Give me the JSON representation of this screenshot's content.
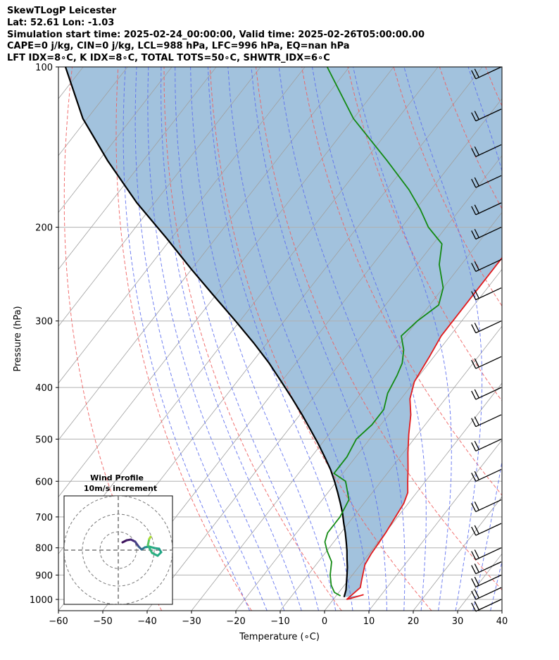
{
  "header": {
    "line1": "SkewTLogP Leicester",
    "line2": "Lat: 52.61   Lon: -1.03",
    "line3": "Simulation start time: 2025-02-24_00:00:00, Valid time: 2025-02-26T05:00:00.00",
    "line4": "CAPE=0 j/kg, CIN=0 j/kg, LCL=988 hPa, LFC=996 hPa, EQ=nan hPa",
    "line5": "LFT IDX=8∘C, K IDX=8∘C, TOTAL TOTS=50∘C, SHWTR_IDX=6∘C"
  },
  "chart_data": [
    {
      "type": "line",
      "title": "",
      "xlabel": "Temperature (∘C)",
      "ylabel": "Pressure (hPa)",
      "xlim": [
        -60,
        40
      ],
      "ylim": [
        1050,
        100
      ],
      "y_scale": "log",
      "skew": "skew-T",
      "grid": true,
      "x_ticks": [
        "−60",
        "−50",
        "−40",
        "−30",
        "−20",
        "−10",
        "0",
        "10",
        "20",
        "30",
        "40"
      ],
      "y_ticks": [
        "100",
        "200",
        "300",
        "400",
        "500",
        "600",
        "700",
        "800",
        "900",
        "1000"
      ],
      "colors": {
        "temperature": "#e31a1c",
        "dewpoint": "#138a13",
        "parcel": "#000000",
        "shade": "#7ba8cf",
        "dry_adiabat": "#f06060",
        "moist_adiabat": "#5a6cf0",
        "isotherm": "#a0a0a0"
      },
      "series": [
        {
          "key": "temperature",
          "points": [
            [
              6,
              980
            ],
            [
              3,
              1000
            ],
            [
              4,
              950
            ],
            [
              3,
              920
            ],
            [
              1,
              860
            ],
            [
              0.5,
              820
            ],
            [
              0.3,
              780
            ],
            [
              0.1,
              750
            ],
            [
              -0.5,
              700
            ],
            [
              -1,
              660
            ],
            [
              -2,
              630
            ],
            [
              -4,
              600
            ],
            [
              -6,
              570
            ],
            [
              -9,
              530
            ],
            [
              -12,
              490
            ],
            [
              -15,
              450
            ],
            [
              -18,
              420
            ],
            [
              -20,
              390
            ],
            [
              -21,
              350
            ],
            [
              -22,
              320
            ],
            [
              -22,
              290
            ],
            [
              -22,
              270
            ],
            [
              -22,
              250
            ],
            [
              -22,
              220
            ],
            [
              -22,
              200
            ],
            [
              -23,
              180
            ],
            [
              -24,
              160
            ],
            [
              -28,
              150
            ],
            [
              -30,
              140
            ],
            [
              -32,
              130
            ],
            [
              -38,
              120
            ],
            [
              -44,
              110
            ],
            [
              -50,
              100
            ]
          ]
        },
        {
          "key": "dewpoint",
          "points": [
            [
              1,
              985
            ],
            [
              -1,
              970
            ],
            [
              -3,
              940
            ],
            [
              -5,
              900
            ],
            [
              -7,
              850
            ],
            [
              -10,
              810
            ],
            [
              -12,
              780
            ],
            [
              -13,
              750
            ],
            [
              -13,
              700
            ],
            [
              -14,
              650
            ],
            [
              -18,
              600
            ],
            [
              -22,
              580
            ],
            [
              -22,
              540
            ],
            [
              -23,
              500
            ],
            [
              -22,
              470
            ],
            [
              -22,
              440
            ],
            [
              -24,
              410
            ],
            [
              -25,
              380
            ],
            [
              -26,
              360
            ],
            [
              -28,
              340
            ],
            [
              -31,
              320
            ],
            [
              -30,
              300
            ],
            [
              -28,
              280
            ],
            [
              -30,
              260
            ],
            [
              -35,
              235
            ],
            [
              -38,
              215
            ],
            [
              -44,
              200
            ],
            [
              -49,
              185
            ],
            [
              -55,
              170
            ],
            [
              -65,
              150
            ],
            [
              -80,
              125
            ],
            [
              -95,
              100
            ]
          ]
        },
        {
          "key": "parcel",
          "points": [
            [
              2,
              990
            ],
            [
              1.2,
              960
            ],
            [
              0,
              930
            ],
            [
              -1.2,
              900
            ],
            [
              -2.5,
              870
            ],
            [
              -4,
              840
            ],
            [
              -5.5,
              810
            ],
            [
              -7.2,
              780
            ],
            [
              -9,
              750
            ],
            [
              -11,
              720
            ],
            [
              -13,
              690
            ],
            [
              -15.3,
              660
            ],
            [
              -17.8,
              630
            ],
            [
              -20.5,
              600
            ],
            [
              -23.5,
              570
            ],
            [
              -27,
              540
            ],
            [
              -30.8,
              510
            ],
            [
              -35,
              480
            ],
            [
              -39.5,
              450
            ],
            [
              -44.5,
              420
            ],
            [
              -50,
              390
            ],
            [
              -56,
              360
            ],
            [
              -63,
              330
            ],
            [
              -71,
              300
            ],
            [
              -80,
              270
            ],
            [
              -90,
              240
            ],
            [
              -101,
              210
            ],
            [
              -114,
              180
            ],
            [
              -128,
              150
            ],
            [
              -141,
              125
            ],
            [
              -154,
              100
            ]
          ]
        }
      ],
      "wind_barbs": {
        "speed_kt": 25,
        "levels": [
          100,
          120,
          140,
          160,
          180,
          200,
          230,
          260,
          300,
          350,
          400,
          450,
          500,
          570,
          650,
          720,
          800,
          850,
          900,
          950,
          1000
        ]
      },
      "inset": {
        "title": "Wind Profile",
        "subtitle": "10m/s increment",
        "ring_increment_ms": 10
      }
    }
  ]
}
